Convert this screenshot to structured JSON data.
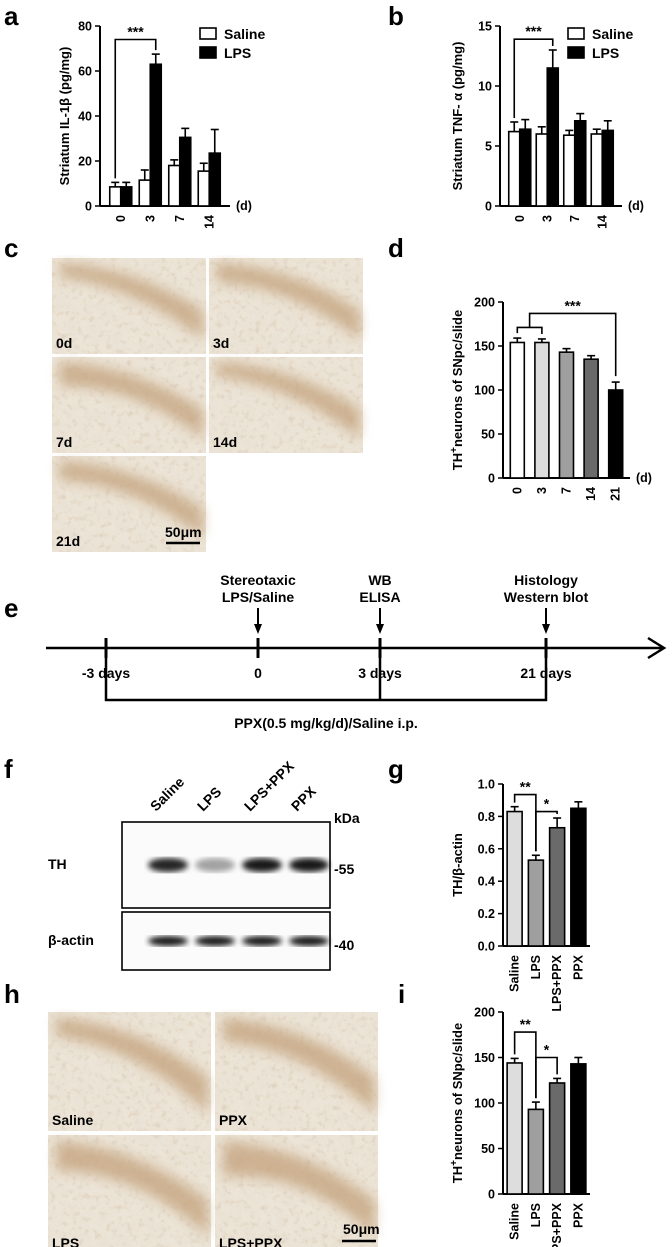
{
  "panel_letters": [
    "a",
    "b",
    "c",
    "d",
    "e",
    "f",
    "g",
    "h",
    "i"
  ],
  "chart_data": [
    {
      "id": "a",
      "type": "bar",
      "categories": [
        "0",
        "3",
        "7",
        "14"
      ],
      "x_unit": "(d)",
      "ylabel": "Striatum IL-1β (pg/mg)",
      "ylim": [
        0,
        80
      ],
      "yticks": [
        0,
        20,
        40,
        60,
        80
      ],
      "series": [
        {
          "name": "Saline",
          "fill": "#ffffff",
          "values": [
            8.5,
            11.5,
            18,
            15.5
          ],
          "errors": [
            2,
            4.5,
            2.5,
            3.5
          ]
        },
        {
          "name": "LPS",
          "fill": "#000000",
          "values": [
            8.5,
            63,
            30.5,
            23.5
          ],
          "errors": [
            2,
            4.5,
            4,
            10.5
          ]
        }
      ],
      "legend": "top-right",
      "significance": [
        {
          "label": "***",
          "from": "0:0",
          "to": "1:1",
          "y": 74
        }
      ]
    },
    {
      "id": "b",
      "type": "bar",
      "categories": [
        "0",
        "3",
        "7",
        "14"
      ],
      "x_unit": "(d)",
      "ylabel": "Striatum TNF- α (pg/mg)",
      "ylim": [
        0,
        15
      ],
      "yticks": [
        0,
        5,
        10,
        15
      ],
      "series": [
        {
          "name": "Saline",
          "fill": "#ffffff",
          "values": [
            6.2,
            6.0,
            5.9,
            6.0
          ],
          "errors": [
            0.8,
            0.6,
            0.4,
            0.4
          ]
        },
        {
          "name": "LPS",
          "fill": "#000000",
          "values": [
            6.4,
            11.5,
            7.1,
            6.3
          ],
          "errors": [
            0.8,
            1.5,
            0.6,
            0.8
          ]
        }
      ],
      "legend": "top-right",
      "significance": [
        {
          "label": "***",
          "from": "0:0",
          "to": "1:1",
          "y": 13.9
        }
      ]
    },
    {
      "id": "d",
      "type": "bar",
      "categories": [
        "0",
        "3",
        "7",
        "14",
        "21"
      ],
      "x_unit": "(d)",
      "ylabel_main": "TH",
      "ylabel_sup": "+",
      "ylabel_rest": "neurons of SNpc/slide",
      "ylim": [
        0,
        200
      ],
      "yticks": [
        0,
        50,
        100,
        150,
        200
      ],
      "values": [
        154,
        154,
        143,
        135,
        100
      ],
      "errors": [
        5,
        4,
        4,
        4,
        9
      ],
      "fills": [
        "#ffffff",
        "#dddddd",
        "#9f9f9f",
        "#6a6a6a",
        "#000000"
      ],
      "significance": [
        {
          "label": "***",
          "group": [
            0,
            1
          ],
          "to": 4,
          "y": 187
        }
      ]
    },
    {
      "id": "g",
      "type": "bar",
      "categories": [
        "Saline",
        "LPS",
        "LPS+PPX",
        "PPX"
      ],
      "ylabel": "TH/β-actin",
      "ylim": [
        0,
        1.0
      ],
      "yticks": [
        "0.0",
        "0.2",
        "0.4",
        "0.6",
        "0.8",
        "1.0"
      ],
      "values": [
        0.83,
        0.53,
        0.73,
        0.85
      ],
      "errors": [
        0.03,
        0.03,
        0.06,
        0.04
      ],
      "fills": [
        "#dddddd",
        "#9f9f9f",
        "#6a6a6a",
        "#000000"
      ],
      "significance": [
        {
          "label": "**",
          "from": 0,
          "to": 1,
          "y": 0.935
        },
        {
          "label": "*",
          "from": 1,
          "to": 2,
          "y": 0.83
        }
      ]
    },
    {
      "id": "i",
      "type": "bar",
      "categories": [
        "Saline",
        "LPS",
        "LPS+PPX",
        "PPX"
      ],
      "ylabel_main": "TH",
      "ylabel_sup": "+",
      "ylabel_rest": "neurons of SNpc/slide",
      "ylim": [
        0,
        200
      ],
      "yticks": [
        0,
        50,
        100,
        150,
        200
      ],
      "values": [
        144,
        93,
        122,
        143
      ],
      "errors": [
        5,
        8,
        5,
        7
      ],
      "fills": [
        "#dddddd",
        "#9f9f9f",
        "#6a6a6a",
        "#000000"
      ],
      "significance": [
        {
          "label": "**",
          "from": 0,
          "to": 1,
          "y": 178
        },
        {
          "label": "*",
          "from": 1,
          "to": 2,
          "y": 150
        }
      ]
    }
  ],
  "micrographs_c": {
    "labels": [
      "0d",
      "3d",
      "7d",
      "14d",
      "21d"
    ],
    "scale_bar": "50μm"
  },
  "timeline": {
    "ticks": [
      "-3 days",
      "0",
      "3 days",
      "21 days"
    ],
    "events": [
      {
        "line1": "Stereotaxic",
        "line2": "LPS/Saline"
      },
      {
        "line1": "WB",
        "line2": "ELISA"
      },
      {
        "line1": "Histology",
        "line2": "Western blot"
      }
    ],
    "treatment": "PPX(0.5 mg/kg/d)/Saline i.p."
  },
  "blot": {
    "lanes": [
      "Saline",
      "LPS",
      "LPS+PPX",
      "PPX"
    ],
    "unit": "kDa",
    "rows": [
      {
        "label": "TH",
        "marker": "-55",
        "intensity": [
          0.85,
          0.35,
          0.9,
          0.9
        ]
      },
      {
        "label": "β-actin",
        "marker": "-40",
        "intensity": [
          0.9,
          0.9,
          0.9,
          0.9
        ]
      }
    ]
  },
  "micrographs_h": {
    "labels": [
      "Saline",
      "PPX",
      "LPS",
      "LPS+PPX"
    ],
    "scale_bar": "50μm"
  }
}
